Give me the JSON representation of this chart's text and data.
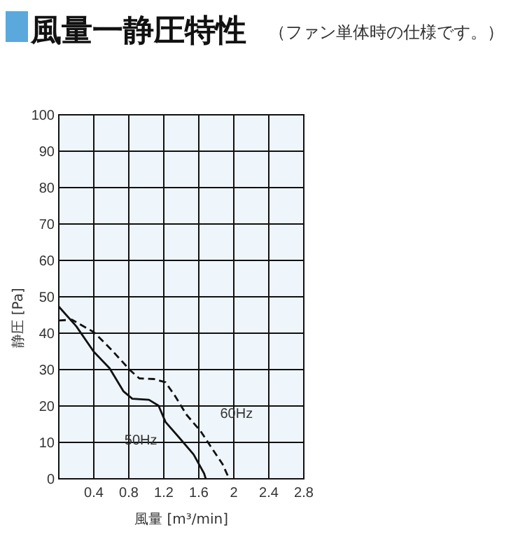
{
  "chart_data": {
    "type": "line",
    "title": "風量一静圧特性",
    "subtitle": "（ファン単体時の仕様です。）",
    "xlabel": "風量 [m³/min]",
    "ylabel": "静圧 [Pa]",
    "xlim": [
      0,
      2.8
    ],
    "xticks": [
      0.4,
      0.8,
      1.2,
      1.6,
      2.0,
      2.4,
      2.8
    ],
    "ylim": [
      0,
      100
    ],
    "yticks": [
      0,
      10,
      20,
      30,
      40,
      50,
      60,
      70,
      80,
      90,
      100
    ],
    "grid": true,
    "marker": "none",
    "series": [
      {
        "name": "50Hz",
        "color": "#111111",
        "line_style": "solid",
        "x": [
          0,
          0.2,
          0.4,
          0.58,
          0.74,
          0.84,
          1.03,
          1.14,
          1.22,
          1.38,
          1.54,
          1.66,
          1.68
        ],
        "values": [
          47.3,
          41.9,
          34.9,
          30.4,
          24,
          22,
          21.7,
          20.1,
          15.6,
          11.2,
          6.7,
          1.5,
          0
        ]
      },
      {
        "name": "60Hz",
        "color": "#111111",
        "line_style": "dashed",
        "x": [
          0,
          0.15,
          0.4,
          0.6,
          0.82,
          0.92,
          1.09,
          1.22,
          1.33,
          1.46,
          1.62,
          1.78,
          1.87,
          1.93,
          1.95
        ],
        "values": [
          43.5,
          43.7,
          40.3,
          35.5,
          29.7,
          27.6,
          27.4,
          26.5,
          22.7,
          17.6,
          13.1,
          7.3,
          4.1,
          0.9,
          0
        ]
      }
    ]
  }
}
